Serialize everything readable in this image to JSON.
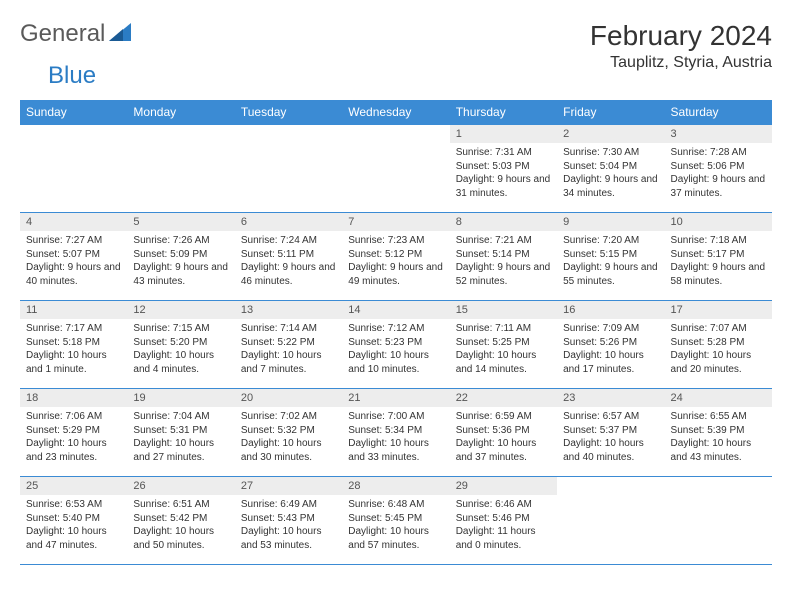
{
  "logo": {
    "text1": "General",
    "text2": "Blue"
  },
  "title": "February 2024",
  "location": "Tauplitz, Styria, Austria",
  "colors": {
    "header_bg": "#3b8bd4",
    "header_text": "#ffffff",
    "daynum_bg": "#ededed",
    "border": "#3b8bd4",
    "logo_gray": "#5a5a5a",
    "logo_blue": "#2b7cc4"
  },
  "dayNames": [
    "Sunday",
    "Monday",
    "Tuesday",
    "Wednesday",
    "Thursday",
    "Friday",
    "Saturday"
  ],
  "weeks": [
    [
      null,
      null,
      null,
      null,
      {
        "n": "1",
        "sr": "7:31 AM",
        "ss": "5:03 PM",
        "dl": "9 hours and 31 minutes."
      },
      {
        "n": "2",
        "sr": "7:30 AM",
        "ss": "5:04 PM",
        "dl": "9 hours and 34 minutes."
      },
      {
        "n": "3",
        "sr": "7:28 AM",
        "ss": "5:06 PM",
        "dl": "9 hours and 37 minutes."
      }
    ],
    [
      {
        "n": "4",
        "sr": "7:27 AM",
        "ss": "5:07 PM",
        "dl": "9 hours and 40 minutes."
      },
      {
        "n": "5",
        "sr": "7:26 AM",
        "ss": "5:09 PM",
        "dl": "9 hours and 43 minutes."
      },
      {
        "n": "6",
        "sr": "7:24 AM",
        "ss": "5:11 PM",
        "dl": "9 hours and 46 minutes."
      },
      {
        "n": "7",
        "sr": "7:23 AM",
        "ss": "5:12 PM",
        "dl": "9 hours and 49 minutes."
      },
      {
        "n": "8",
        "sr": "7:21 AM",
        "ss": "5:14 PM",
        "dl": "9 hours and 52 minutes."
      },
      {
        "n": "9",
        "sr": "7:20 AM",
        "ss": "5:15 PM",
        "dl": "9 hours and 55 minutes."
      },
      {
        "n": "10",
        "sr": "7:18 AM",
        "ss": "5:17 PM",
        "dl": "9 hours and 58 minutes."
      }
    ],
    [
      {
        "n": "11",
        "sr": "7:17 AM",
        "ss": "5:18 PM",
        "dl": "10 hours and 1 minute."
      },
      {
        "n": "12",
        "sr": "7:15 AM",
        "ss": "5:20 PM",
        "dl": "10 hours and 4 minutes."
      },
      {
        "n": "13",
        "sr": "7:14 AM",
        "ss": "5:22 PM",
        "dl": "10 hours and 7 minutes."
      },
      {
        "n": "14",
        "sr": "7:12 AM",
        "ss": "5:23 PM",
        "dl": "10 hours and 10 minutes."
      },
      {
        "n": "15",
        "sr": "7:11 AM",
        "ss": "5:25 PM",
        "dl": "10 hours and 14 minutes."
      },
      {
        "n": "16",
        "sr": "7:09 AM",
        "ss": "5:26 PM",
        "dl": "10 hours and 17 minutes."
      },
      {
        "n": "17",
        "sr": "7:07 AM",
        "ss": "5:28 PM",
        "dl": "10 hours and 20 minutes."
      }
    ],
    [
      {
        "n": "18",
        "sr": "7:06 AM",
        "ss": "5:29 PM",
        "dl": "10 hours and 23 minutes."
      },
      {
        "n": "19",
        "sr": "7:04 AM",
        "ss": "5:31 PM",
        "dl": "10 hours and 27 minutes."
      },
      {
        "n": "20",
        "sr": "7:02 AM",
        "ss": "5:32 PM",
        "dl": "10 hours and 30 minutes."
      },
      {
        "n": "21",
        "sr": "7:00 AM",
        "ss": "5:34 PM",
        "dl": "10 hours and 33 minutes."
      },
      {
        "n": "22",
        "sr": "6:59 AM",
        "ss": "5:36 PM",
        "dl": "10 hours and 37 minutes."
      },
      {
        "n": "23",
        "sr": "6:57 AM",
        "ss": "5:37 PM",
        "dl": "10 hours and 40 minutes."
      },
      {
        "n": "24",
        "sr": "6:55 AM",
        "ss": "5:39 PM",
        "dl": "10 hours and 43 minutes."
      }
    ],
    [
      {
        "n": "25",
        "sr": "6:53 AM",
        "ss": "5:40 PM",
        "dl": "10 hours and 47 minutes."
      },
      {
        "n": "26",
        "sr": "6:51 AM",
        "ss": "5:42 PM",
        "dl": "10 hours and 50 minutes."
      },
      {
        "n": "27",
        "sr": "6:49 AM",
        "ss": "5:43 PM",
        "dl": "10 hours and 53 minutes."
      },
      {
        "n": "28",
        "sr": "6:48 AM",
        "ss": "5:45 PM",
        "dl": "10 hours and 57 minutes."
      },
      {
        "n": "29",
        "sr": "6:46 AM",
        "ss": "5:46 PM",
        "dl": "11 hours and 0 minutes."
      },
      null,
      null
    ]
  ],
  "labels": {
    "sunrise": "Sunrise:",
    "sunset": "Sunset:",
    "daylight": "Daylight:"
  }
}
